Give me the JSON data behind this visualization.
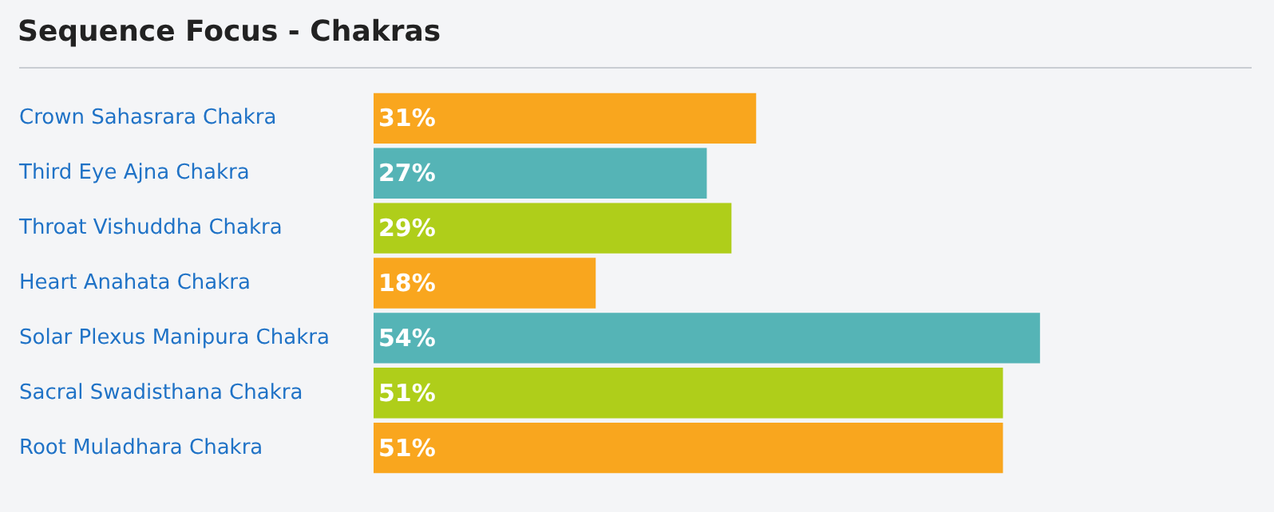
{
  "chart_data": {
    "type": "bar",
    "orientation": "horizontal",
    "title": "Sequence Focus - Chakras",
    "categories": [
      "Crown Sahasrara Chakra",
      "Third Eye Ajna Chakra",
      "Throat Vishuddha Chakra",
      "Heart Anahata Chakra",
      "Solar Plexus Manipura Chakra",
      "Sacral Swadisthana Chakra",
      "Root Muladhara Chakra"
    ],
    "values": [
      31,
      27,
      29,
      18,
      54,
      51,
      51
    ],
    "colors": [
      "#f9a61e",
      "#55b4b6",
      "#afce1a",
      "#f9a61e",
      "#55b4b6",
      "#afce1a",
      "#f9a61e"
    ],
    "value_labels": [
      "31%",
      "27%",
      "29%",
      "18%",
      "54%",
      "51%",
      "51%"
    ]
  }
}
